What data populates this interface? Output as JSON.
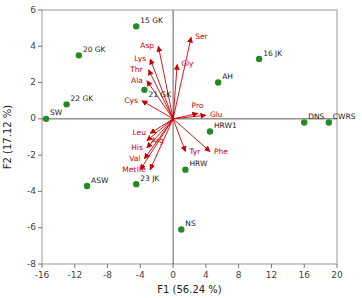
{
  "chart_data": {
    "type": "biplot",
    "xlabel": "F1 (56.24 %)",
    "ylabel": "F2 (17.12 %)",
    "xlim": [
      -16,
      20
    ],
    "ylim": [
      -8,
      6
    ],
    "xticks": [
      -16,
      -12,
      -8,
      -4,
      0,
      4,
      8,
      12,
      16,
      20
    ],
    "yticks": [
      -8,
      -6,
      -4,
      -2,
      0,
      2,
      4,
      6
    ],
    "grid": false,
    "samples": {
      "color": "#228B22",
      "labels": [
        "15 GK",
        "20 GK",
        "22 GK",
        "SW",
        "21 GK",
        "ASW",
        "23 JK",
        "HRW",
        "NS",
        "AH",
        "16 JK",
        "HRW1",
        "DNS",
        "CWRS"
      ],
      "x": [
        -4.5,
        -11.5,
        -13.0,
        -15.5,
        -3.5,
        -10.5,
        -4.5,
        1.5,
        1.0,
        5.5,
        10.5,
        4.5,
        16.0,
        19.0
      ],
      "y": [
        5.1,
        3.5,
        0.8,
        0.0,
        1.6,
        -3.7,
        -3.6,
        -2.8,
        -6.1,
        2.0,
        3.3,
        -0.7,
        -0.2,
        -0.2
      ]
    },
    "arrows": {
      "color": "#cc0000",
      "labels": [
        "Ser",
        "Gly",
        "Asp",
        "Lys",
        "Thr",
        "Ala",
        "Cys",
        "Pro",
        "Glu",
        "Leu",
        "Arg",
        "His",
        "Val",
        "Met",
        "Ile",
        "Tyr",
        "Phe"
      ],
      "x": [
        2.2,
        0.5,
        -1.8,
        -2.8,
        -3.0,
        -3.2,
        -3.8,
        3.0,
        4.0,
        -2.8,
        -3.2,
        -3.2,
        -3.5,
        -4.0,
        -2.8,
        1.5,
        4.5
      ],
      "y": [
        4.5,
        3.0,
        4.0,
        3.3,
        2.7,
        2.1,
        1.0,
        0.3,
        0.2,
        -0.8,
        -1.2,
        -1.6,
        -2.2,
        -2.8,
        -2.8,
        -1.8,
        -1.8
      ]
    }
  }
}
